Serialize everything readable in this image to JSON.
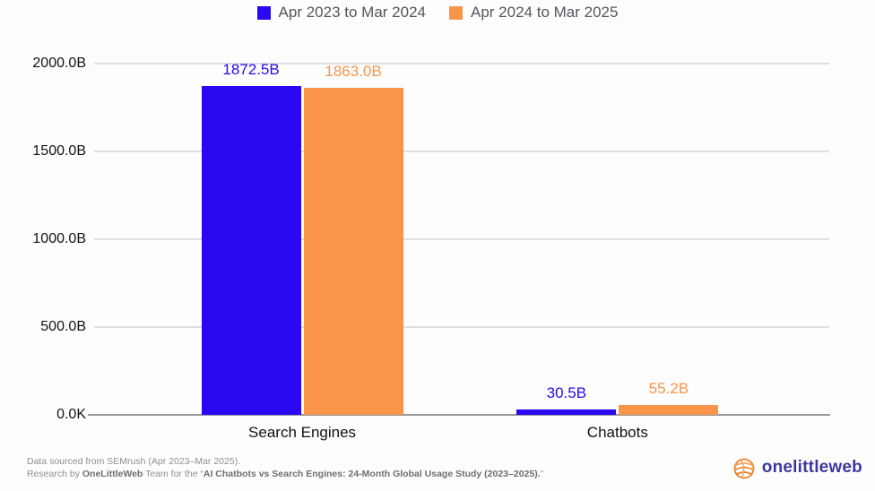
{
  "chart_data": {
    "type": "bar",
    "title": "",
    "categories": [
      "Search Engines",
      "Chatbots"
    ],
    "series": [
      {
        "name": "Apr 2023 to Mar 2024",
        "color": "#2a08f2",
        "values": [
          1872.5,
          30.5
        ],
        "labels": [
          "1872.5B",
          "30.5B"
        ]
      },
      {
        "name": "Apr 2024 to Mar 2025",
        "color": "#f8954a",
        "values": [
          1863.0,
          55.2
        ],
        "labels": [
          "1863.0B",
          "55.2B"
        ]
      }
    ],
    "unit": "B",
    "ylim": [
      0,
      2000
    ],
    "yticks": [
      {
        "value": 0,
        "label": "0.0K"
      },
      {
        "value": 500,
        "label": "500.0B"
      },
      {
        "value": 1000,
        "label": "1000.0B"
      },
      {
        "value": 1500,
        "label": "1500.0B"
      },
      {
        "value": 2000,
        "label": "2000.0B"
      }
    ],
    "grid": true,
    "legend_position": "top-center"
  },
  "footer": {
    "line1": "Data sourced from SEMrush (Apr 2023–Mar 2025).",
    "line2_prefix": "Research by ",
    "line2_brand": "OneLittleWeb",
    "line2_middle": " Team for the “",
    "line2_title": "AI Chatbots vs Search Engines: 24-Month Global Usage Study (2023–2025).",
    "line2_suffix": "”"
  },
  "logo": {
    "text": "onelittleweb",
    "icon": "globe-swirl-icon",
    "icon_color": "#ef8c38",
    "text_color": "#3d38a0"
  },
  "colors": {
    "background": "#fdfdfe",
    "grid": "#dedee3",
    "axis_line": "#96969c",
    "tick_text": "#121212",
    "legend_text": "#55565c"
  }
}
